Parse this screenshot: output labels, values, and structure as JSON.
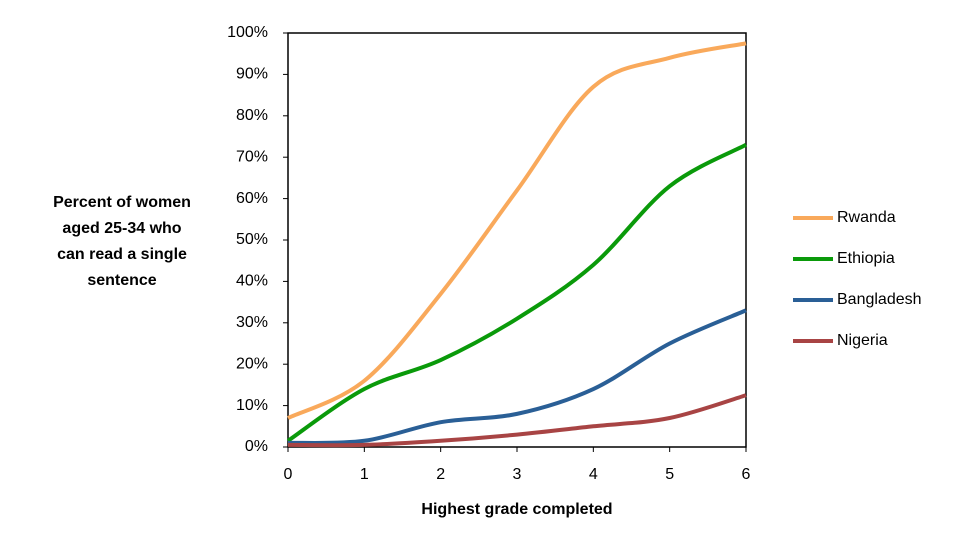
{
  "chart_data": {
    "type": "line",
    "xlabel": "Highest grade completed",
    "ylabel": [
      "Percent of women",
      "aged 25-34 who",
      "can read a single",
      "sentence"
    ],
    "x": [
      0,
      1,
      2,
      3,
      4,
      5,
      6
    ],
    "xlim": [
      0,
      6
    ],
    "xticks": [
      0,
      1,
      2,
      3,
      4,
      5,
      6
    ],
    "ylim": [
      0,
      100
    ],
    "yticks": [
      {
        "value": 0,
        "label": "0%"
      },
      {
        "value": 10,
        "label": "10%"
      },
      {
        "value": 20,
        "label": "20%"
      },
      {
        "value": 30,
        "label": "30%"
      },
      {
        "value": 40,
        "label": "40%"
      },
      {
        "value": 50,
        "label": "50%"
      },
      {
        "value": 60,
        "label": "60%"
      },
      {
        "value": 70,
        "label": "70%"
      },
      {
        "value": 80,
        "label": "80%"
      },
      {
        "value": 90,
        "label": "90%"
      },
      {
        "value": 100,
        "label": "100%"
      }
    ],
    "grid": false,
    "smooth": true,
    "legend": "right",
    "series": [
      {
        "name": "Rwanda",
        "color": "#f9a95b",
        "values": [
          7,
          16,
          37,
          62,
          87,
          94,
          97.5
        ]
      },
      {
        "name": "Ethiopia",
        "color": "#0a9a0a",
        "values": [
          1.5,
          14,
          21,
          31,
          44,
          63,
          73
        ]
      },
      {
        "name": "Bangladesh",
        "color": "#2a5f96",
        "values": [
          1,
          1.5,
          6,
          8,
          14,
          25,
          33
        ]
      },
      {
        "name": "Nigeria",
        "color": "#a84444",
        "values": [
          0.5,
          0.5,
          1.5,
          3,
          5,
          7,
          12.5
        ]
      }
    ]
  }
}
